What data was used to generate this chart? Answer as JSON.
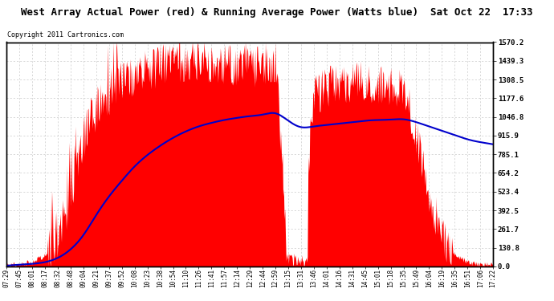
{
  "title": "West Array Actual Power (red) & Running Average Power (Watts blue)  Sat Oct 22  17:33",
  "copyright": "Copyright 2011 Cartronics.com",
  "y_ticks": [
    0.0,
    130.8,
    261.7,
    392.5,
    523.4,
    654.2,
    785.1,
    915.9,
    1046.8,
    1177.6,
    1308.5,
    1439.3,
    1570.2
  ],
  "y_max": 1570.2,
  "x_labels": [
    "07:29",
    "07:45",
    "08:01",
    "08:17",
    "08:32",
    "08:48",
    "09:04",
    "09:21",
    "09:37",
    "09:52",
    "10:08",
    "10:23",
    "10:38",
    "10:54",
    "11:10",
    "11:26",
    "11:41",
    "11:57",
    "12:14",
    "12:29",
    "12:44",
    "12:59",
    "13:15",
    "13:31",
    "13:46",
    "14:01",
    "14:16",
    "14:31",
    "14:45",
    "15:01",
    "15:18",
    "15:35",
    "15:49",
    "16:04",
    "16:19",
    "16:35",
    "16:51",
    "17:06",
    "17:22"
  ],
  "bg_color": "#ffffff",
  "grid_color": "#c8c8c8",
  "red_color": "#ff0000",
  "blue_color": "#0000cc",
  "border_color": "#000000",
  "title_fontsize": 9,
  "copyright_fontsize": 6,
  "tick_fontsize": 5.5,
  "ytick_fontsize": 6.5,
  "actual_power_profile": [
    5,
    20,
    30,
    80,
    200,
    500,
    900,
    1100,
    1200,
    1300,
    1350,
    1380,
    1400,
    1420,
    1440,
    1450,
    1430,
    1420,
    1410,
    1400,
    1410,
    1420,
    50,
    80,
    1200,
    1250,
    1280,
    1300,
    1290,
    1280,
    1270,
    1260,
    900,
    500,
    200,
    80,
    30,
    15,
    10
  ],
  "running_avg_profile": [
    5,
    12,
    18,
    30,
    60,
    120,
    220,
    360,
    490,
    600,
    700,
    780,
    845,
    900,
    945,
    980,
    1005,
    1025,
    1040,
    1052,
    1063,
    1072,
    1020,
    975,
    980,
    990,
    1000,
    1010,
    1020,
    1025,
    1028,
    1030,
    1010,
    980,
    950,
    920,
    890,
    870,
    855
  ]
}
